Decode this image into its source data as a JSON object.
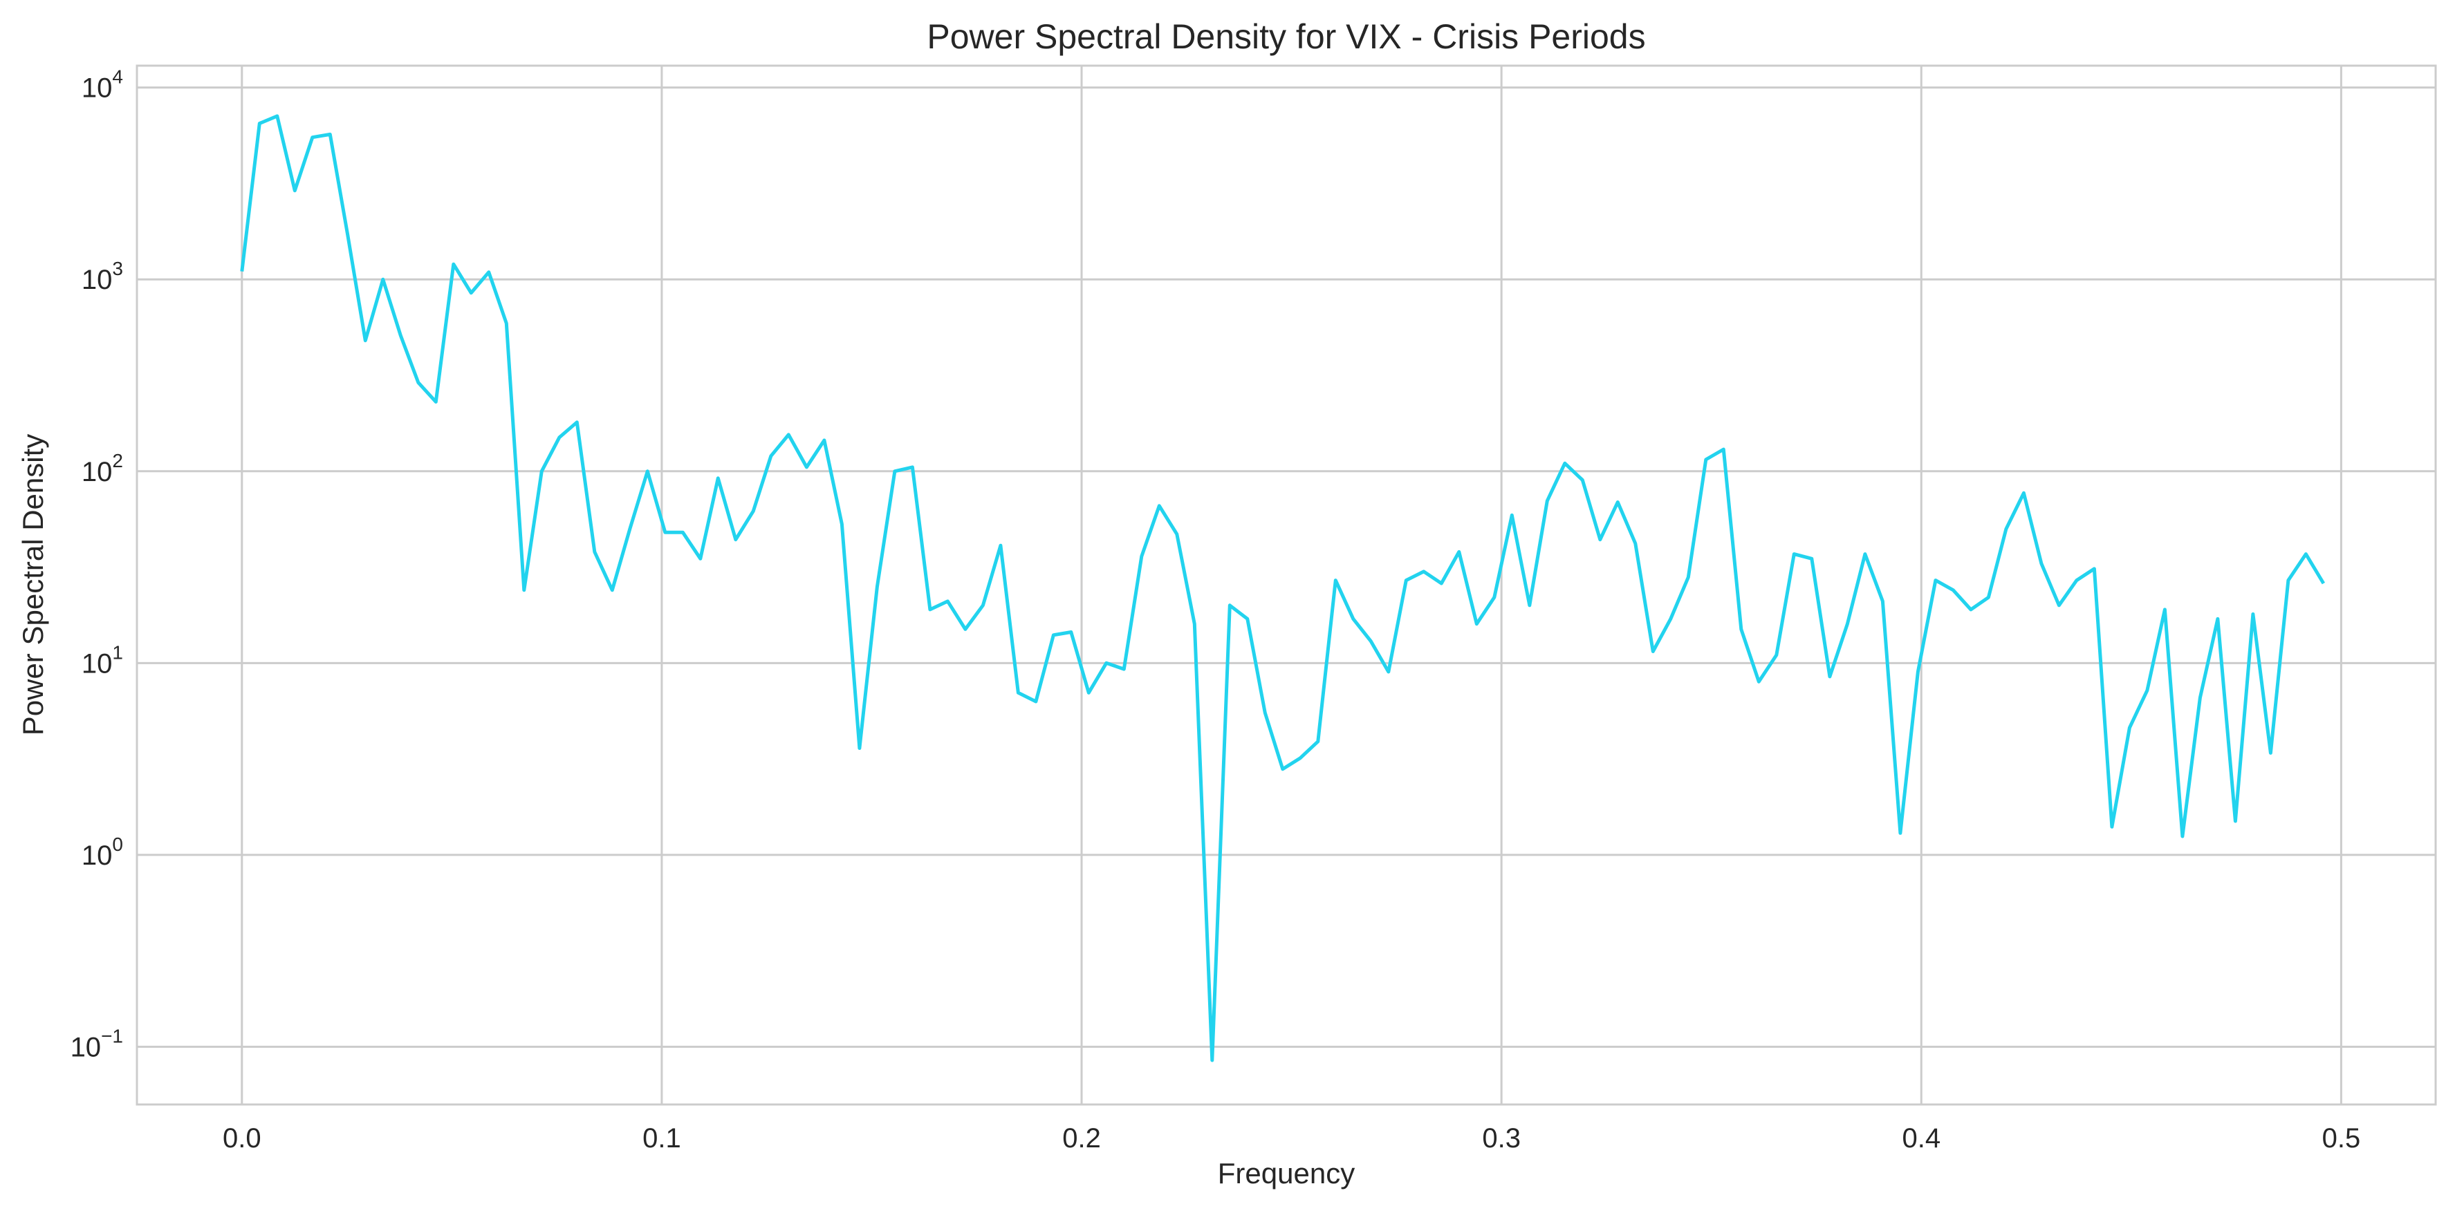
{
  "chart_data": {
    "type": "line",
    "title": "Power Spectral Density for VIX - Crisis Periods",
    "xlabel": "Frequency",
    "ylabel": "Power Spectral Density",
    "yscale": "log",
    "grid": true,
    "xlim": [
      -0.025,
      0.5225
    ],
    "ylim": [
      0.05,
      13000
    ],
    "x_ticks": [
      {
        "value": 0.0,
        "label": "0.0"
      },
      {
        "value": 0.1,
        "label": "0.1"
      },
      {
        "value": 0.2,
        "label": "0.2"
      },
      {
        "value": 0.3,
        "label": "0.3"
      },
      {
        "value": 0.4,
        "label": "0.4"
      },
      {
        "value": 0.5,
        "label": "0.5"
      }
    ],
    "y_ticks": [
      {
        "value": 0.1,
        "base": "10",
        "exponent": "−1"
      },
      {
        "value": 1,
        "base": "10",
        "exponent": "0"
      },
      {
        "value": 10,
        "base": "10",
        "exponent": "1"
      },
      {
        "value": 100,
        "base": "10",
        "exponent": "2"
      },
      {
        "value": 1000,
        "base": "10",
        "exponent": "3"
      },
      {
        "value": 10000,
        "base": "10",
        "exponent": "4"
      }
    ],
    "series": [
      {
        "color": "#22d3ee",
        "x": [
          0.0,
          0.0042,
          0.0084,
          0.0126,
          0.0168,
          0.021,
          0.0252,
          0.0294,
          0.0336,
          0.0378,
          0.042,
          0.0462,
          0.0504,
          0.0546,
          0.0588,
          0.063,
          0.0672,
          0.0714,
          0.0756,
          0.0798,
          0.084,
          0.0882,
          0.0924,
          0.0966,
          0.1008,
          0.105,
          0.1092,
          0.1134,
          0.1176,
          0.1218,
          0.126,
          0.1302,
          0.1345,
          0.1387,
          0.1429,
          0.1471,
          0.1513,
          0.1555,
          0.1597,
          0.1639,
          0.1681,
          0.1723,
          0.1765,
          0.1807,
          0.1849,
          0.1891,
          0.1933,
          0.1975,
          0.2017,
          0.2059,
          0.2101,
          0.2143,
          0.2185,
          0.2227,
          0.2269,
          0.2311,
          0.2353,
          0.2395,
          0.2437,
          0.2479,
          0.2521,
          0.2563,
          0.2605,
          0.2647,
          0.2689,
          0.2731,
          0.2773,
          0.2815,
          0.2857,
          0.2899,
          0.2941,
          0.2983,
          0.3025,
          0.3067,
          0.3109,
          0.3151,
          0.3193,
          0.3235,
          0.3277,
          0.3319,
          0.3361,
          0.3403,
          0.3445,
          0.3487,
          0.3529,
          0.3571,
          0.3613,
          0.3655,
          0.3697,
          0.3739,
          0.3782,
          0.3824,
          0.3866,
          0.3908,
          0.395,
          0.3992,
          0.4034,
          0.4076,
          0.4118,
          0.416,
          0.4202,
          0.4244,
          0.4286,
          0.4328,
          0.437,
          0.4412,
          0.4454,
          0.4496,
          0.4538,
          0.458,
          0.4622,
          0.4664,
          0.4706,
          0.4748,
          0.479,
          0.4832,
          0.4874,
          0.4916,
          0.4958
        ],
        "y": [
          1100,
          6500,
          7100,
          2900,
          5500,
          5700,
          1700,
          480,
          1000,
          510,
          290,
          230,
          1200,
          850,
          1090,
          590,
          24,
          100,
          150,
          180,
          38,
          24,
          50,
          100,
          48,
          48,
          35,
          92,
          44,
          62,
          120,
          155,
          105,
          145,
          53,
          3.6,
          25,
          100,
          105,
          19,
          21,
          15,
          20,
          41,
          7,
          6.3,
          14,
          14.5,
          7,
          10,
          9.3,
          36,
          66,
          47,
          16,
          0.085,
          20,
          17,
          5.5,
          2.8,
          3.2,
          3.9,
          27,
          17,
          13,
          9,
          27,
          30,
          26,
          38,
          16,
          22,
          59,
          20,
          70,
          110,
          90,
          44,
          69,
          42,
          11.5,
          17,
          28,
          115,
          130,
          15,
          8,
          11,
          37,
          35,
          8.5,
          16,
          37,
          21,
          1.3,
          9,
          27,
          24,
          19,
          22,
          50,
          77,
          33,
          20,
          27,
          31,
          1.4,
          4.6,
          7.2,
          19,
          1.25,
          6.6,
          17,
          1.5,
          18,
          3.4,
          27,
          37,
          26
        ]
      }
    ]
  }
}
